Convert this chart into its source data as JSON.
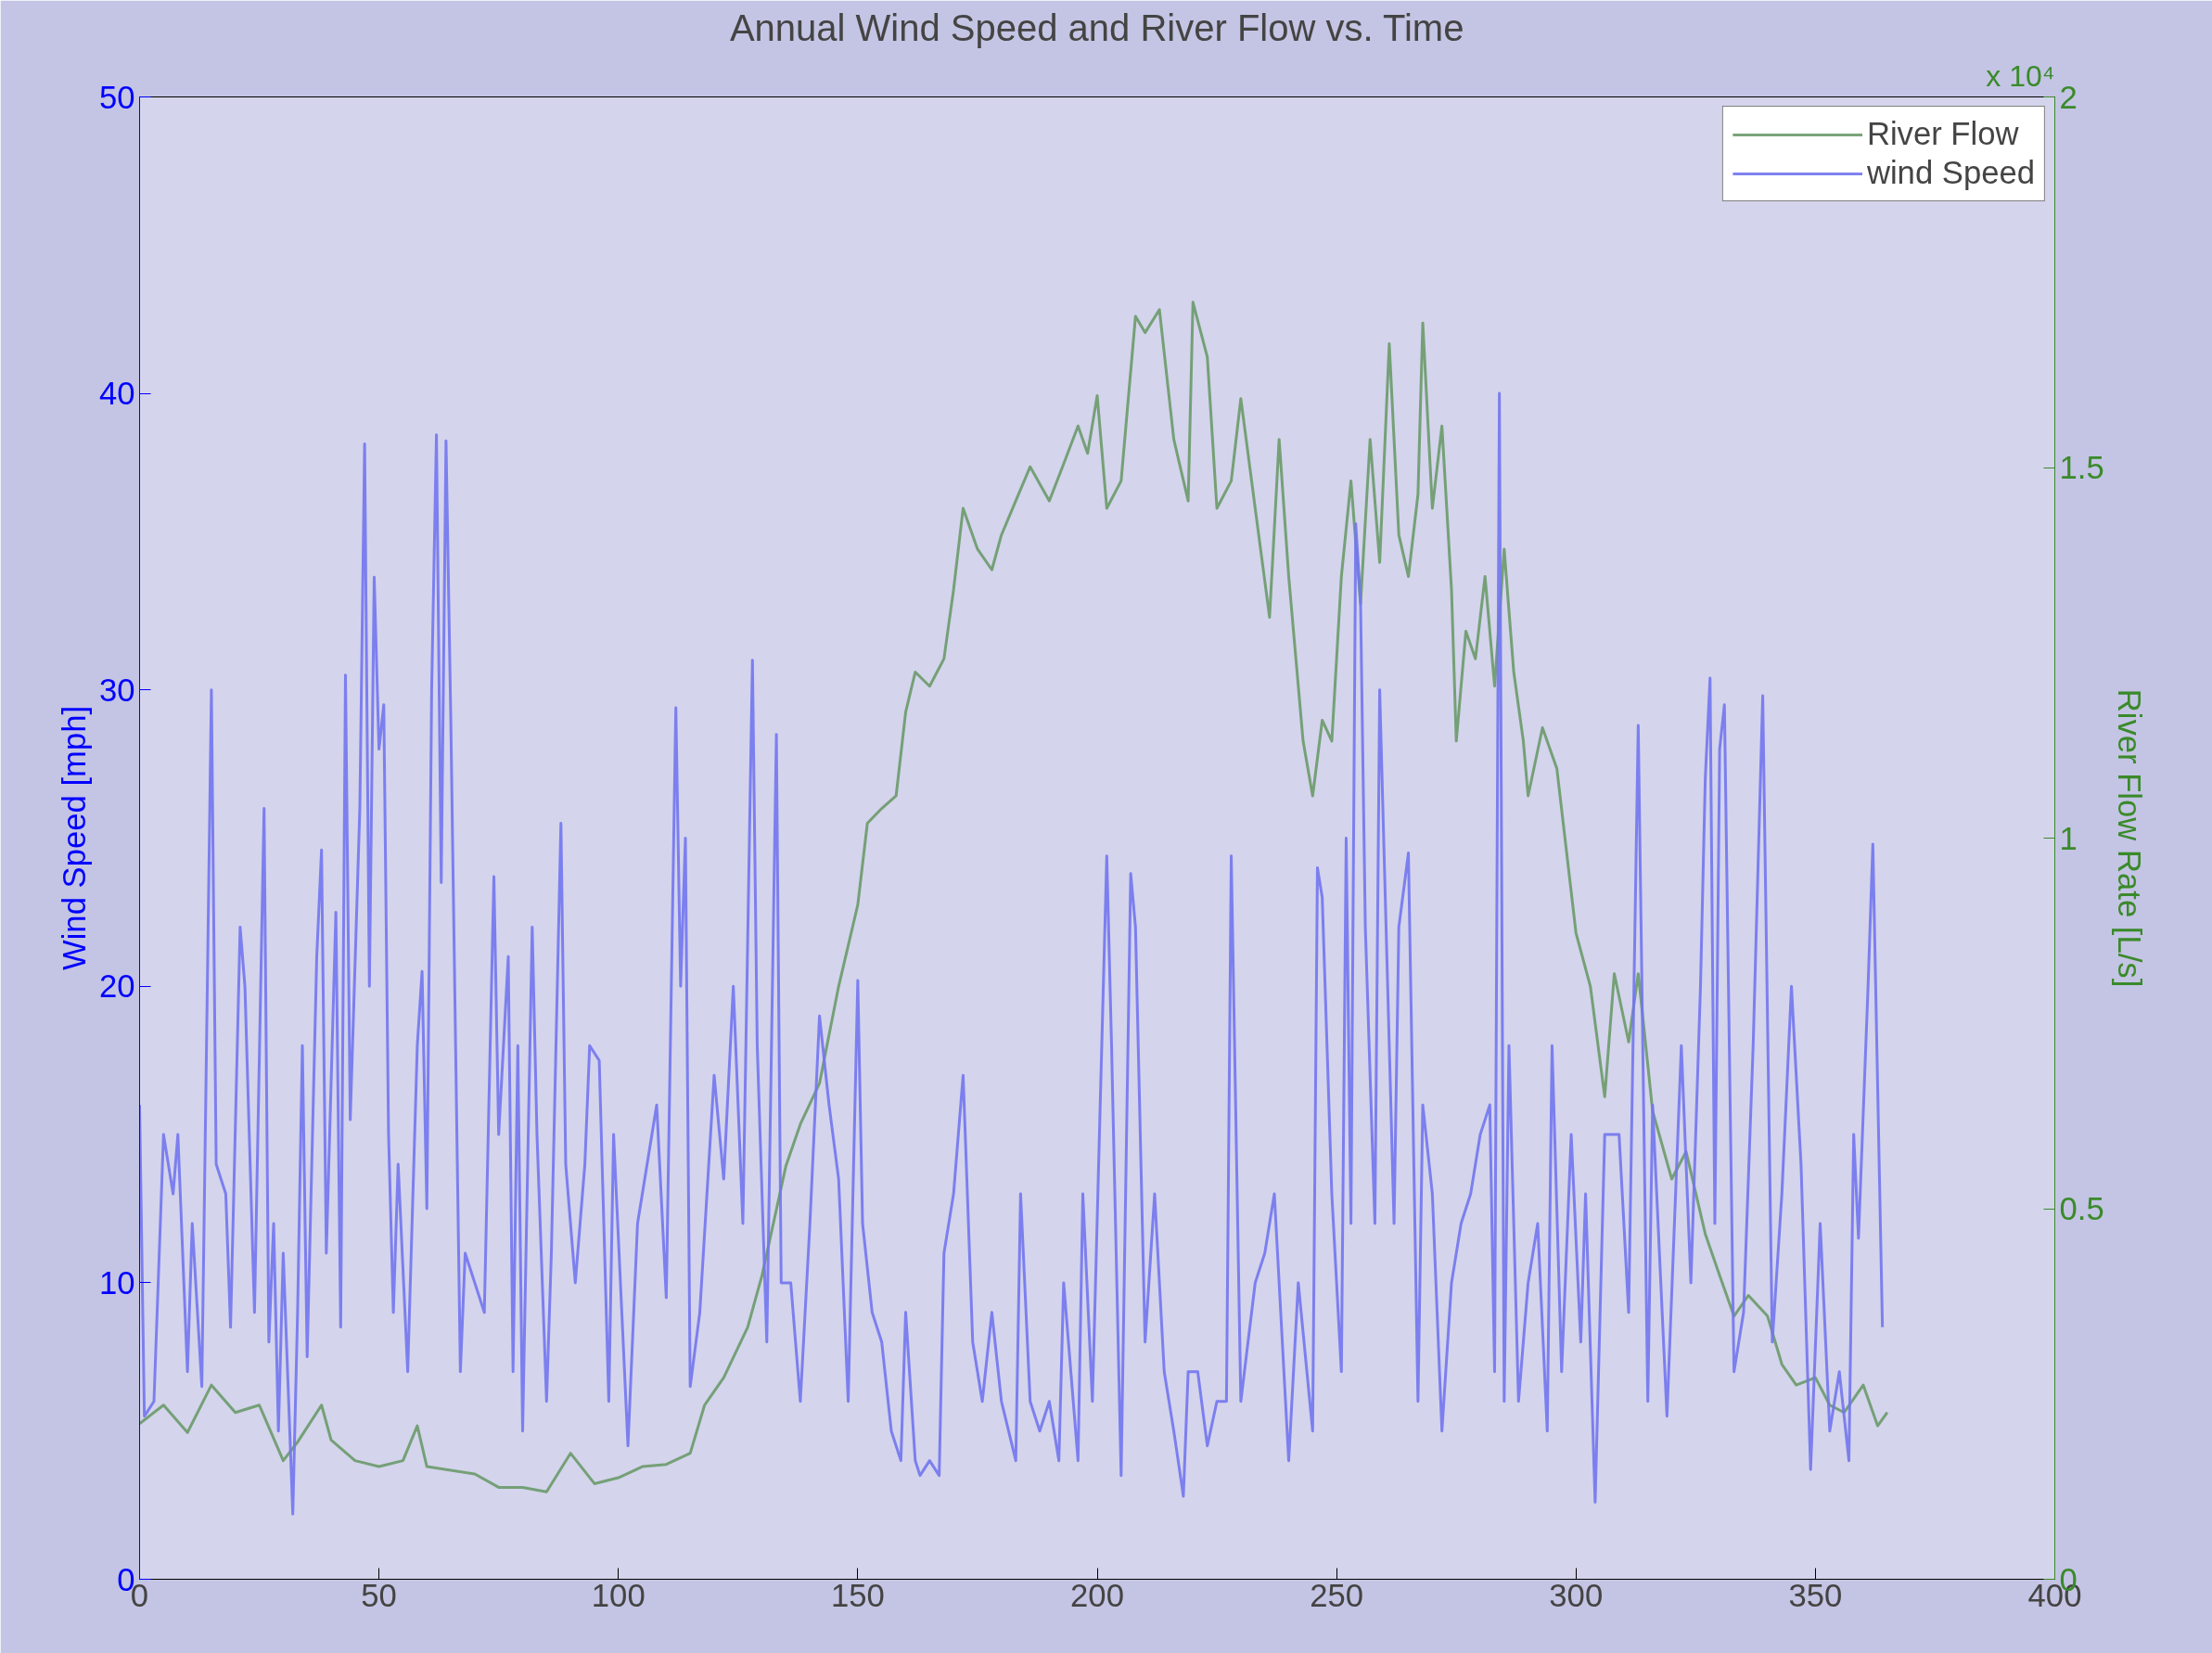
{
  "chart_data": {
    "type": "line",
    "title": "Annual Wind Speed and River Flow vs. Time",
    "ylabel": "Wind Speed [mph]",
    "y2label": "River Flow Rate [L/s]",
    "annotations": [
      "x 10⁴"
    ],
    "xlim": [
      0,
      400
    ],
    "xticks": [
      0,
      50,
      100,
      150,
      200,
      250,
      300,
      350,
      400
    ],
    "ylim": [
      0,
      50
    ],
    "yticks": [
      0,
      10,
      20,
      30,
      40,
      50
    ],
    "y2lim": [
      0,
      2
    ],
    "y2ticks": [
      0,
      0.5,
      1,
      1.5,
      2
    ],
    "grid": false,
    "legend": "top right",
    "marker": "none",
    "line_style": "solid",
    "series": [
      {
        "name": "River Flow",
        "color": "#6a9a6a",
        "axis": "y2",
        "x": [
          0,
          5,
          10,
          15,
          20,
          25,
          30,
          33,
          38,
          40,
          45,
          50,
          55,
          58,
          60,
          70,
          75,
          80,
          85,
          90,
          95,
          100,
          105,
          110,
          115,
          118,
          122,
          127,
          130,
          135,
          138,
          142,
          146,
          150,
          152,
          155,
          158,
          160,
          162,
          165,
          168,
          170,
          172,
          175,
          178,
          180,
          183,
          186,
          190,
          193,
          196,
          198,
          200,
          202,
          205,
          208,
          210,
          213,
          216,
          219,
          220,
          223,
          225,
          228,
          230,
          233,
          236,
          238,
          240,
          243,
          245,
          247,
          249,
          251,
          253,
          255,
          257,
          259,
          261,
          263,
          265,
          267,
          268,
          270,
          272,
          274,
          275,
          277,
          279,
          281,
          283,
          285,
          287,
          289,
          290,
          293,
          296,
          300,
          303,
          306,
          308,
          311,
          313,
          316,
          320,
          323,
          327,
          330,
          333,
          336,
          340,
          343,
          346,
          350,
          353,
          356,
          360,
          363,
          365
        ],
        "values": [
          0.21,
          0.235,
          0.198,
          0.262,
          0.225,
          0.235,
          0.16,
          0.185,
          0.235,
          0.188,
          0.16,
          0.152,
          0.16,
          0.207,
          0.152,
          0.142,
          0.124,
          0.124,
          0.118,
          0.17,
          0.129,
          0.137,
          0.152,
          0.155,
          0.17,
          0.235,
          0.272,
          0.34,
          0.41,
          0.558,
          0.614,
          0.669,
          0.8,
          0.91,
          1.02,
          1.04,
          1.057,
          1.17,
          1.224,
          1.205,
          1.242,
          1.335,
          1.445,
          1.39,
          1.362,
          1.409,
          1.455,
          1.501,
          1.455,
          1.505,
          1.556,
          1.519,
          1.597,
          1.445,
          1.482,
          1.704,
          1.682,
          1.713,
          1.538,
          1.455,
          1.723,
          1.649,
          1.445,
          1.482,
          1.593,
          1.445,
          1.298,
          1.538,
          1.353,
          1.131,
          1.057,
          1.159,
          1.131,
          1.353,
          1.482,
          1.316,
          1.538,
          1.372,
          1.667,
          1.409,
          1.353,
          1.464,
          1.695,
          1.445,
          1.556,
          1.335,
          1.131,
          1.279,
          1.242,
          1.353,
          1.205,
          1.39,
          1.224,
          1.131,
          1.057,
          1.149,
          1.094,
          0.872,
          0.8,
          0.651,
          0.817,
          0.725,
          0.817,
          0.632,
          0.54,
          0.577,
          0.466,
          0.41,
          0.355,
          0.383,
          0.355,
          0.29,
          0.262,
          0.272,
          0.235,
          0.225,
          0.262,
          0.207,
          0.225
        ]
      },
      {
        "name": "wind Speed",
        "color": "#7275ee",
        "axis": "y",
        "x": [
          0,
          1,
          3,
          5,
          7,
          8,
          10,
          11,
          13,
          15,
          16,
          18,
          19,
          21,
          22,
          24,
          26,
          27,
          28,
          29,
          30,
          32,
          33,
          34,
          35,
          37,
          38,
          39,
          41,
          42,
          43,
          44,
          46,
          47,
          48,
          49,
          50,
          51,
          52,
          53,
          54,
          56,
          58,
          59,
          60,
          61,
          62,
          63,
          64,
          65,
          67,
          68,
          70,
          72,
          74,
          75,
          77,
          78,
          79,
          80,
          82,
          83,
          85,
          86,
          88,
          89,
          91,
          93,
          94,
          96,
          98,
          99,
          102,
          104,
          107,
          108,
          110,
          112,
          113,
          114,
          115,
          117,
          120,
          122,
          124,
          126,
          128,
          129,
          131,
          133,
          134,
          136,
          138,
          140,
          142,
          144,
          146,
          148,
          150,
          151,
          153,
          155,
          157,
          159,
          160,
          162,
          163,
          165,
          167,
          168,
          170,
          172,
          174,
          176,
          178,
          180,
          183,
          184,
          186,
          188,
          190,
          192,
          193,
          196,
          197,
          199,
          202,
          203,
          205,
          207,
          208,
          210,
          212,
          214,
          216,
          218,
          219,
          221,
          223,
          225,
          227,
          228,
          230,
          233,
          235,
          237,
          240,
          242,
          245,
          246,
          247,
          249,
          251,
          252,
          253,
          254,
          255,
          256,
          258,
          259,
          260,
          262,
          263,
          265,
          267,
          268,
          270,
          272,
          274,
          276,
          278,
          280,
          282,
          283,
          284,
          285,
          286,
          288,
          290,
          292,
          294,
          295,
          297,
          299,
          301,
          302,
          304,
          306,
          309,
          311,
          313,
          315,
          316,
          319,
          322,
          324,
          326,
          327,
          328,
          329,
          330,
          331,
          333,
          335,
          337,
          339,
          341,
          343,
          345,
          347,
          349,
          351,
          353,
          355,
          357,
          358,
          359,
          361,
          362,
          364
        ],
        "values": [
          16,
          5.5,
          6,
          15,
          13,
          15,
          7,
          12,
          6.5,
          30,
          14,
          13,
          8.5,
          22,
          20,
          9,
          26,
          8,
          12,
          5,
          11,
          2.2,
          9,
          18,
          7.5,
          21,
          24.6,
          11,
          22.5,
          8.5,
          30.5,
          15.5,
          26,
          38.3,
          20,
          33.8,
          28,
          29.5,
          15,
          9,
          14,
          7,
          18,
          20.5,
          12.5,
          30,
          38.6,
          23.5,
          38.4,
          29,
          7,
          11,
          10,
          9,
          23.7,
          15,
          21,
          7,
          18,
          5,
          22,
          15,
          6,
          11,
          25.5,
          14,
          10,
          14,
          18,
          17.5,
          6,
          15,
          4.5,
          12,
          15,
          16,
          9.5,
          29.4,
          20,
          25,
          6.5,
          9,
          17,
          13.5,
          20,
          12,
          31,
          18,
          8,
          28.5,
          10,
          10,
          6,
          12,
          19,
          16,
          13.5,
          6,
          20.2,
          12,
          9,
          8,
          5,
          4,
          9,
          4,
          3.5,
          4,
          3.5,
          11,
          13,
          17,
          8,
          6,
          9,
          6,
          4,
          13,
          6,
          5,
          6,
          4,
          10,
          4,
          13,
          6,
          24.4,
          18,
          3.5,
          23.8,
          22,
          8,
          13,
          7,
          5,
          2.8,
          7,
          7,
          4.5,
          6,
          6,
          24.4,
          6,
          10,
          11,
          13,
          4,
          10,
          5,
          24,
          23,
          13,
          7,
          25,
          12,
          35.6,
          33,
          22,
          12,
          30,
          24,
          12,
          22,
          24.5,
          6,
          16,
          13,
          5,
          10,
          12,
          13,
          15,
          16,
          7,
          40,
          6,
          18,
          6,
          10,
          12,
          5,
          18,
          7,
          15,
          8,
          13,
          2.6,
          15,
          15,
          9,
          28.8,
          6,
          16,
          5.5,
          18,
          10,
          20,
          27,
          30.4,
          12,
          28,
          29.5,
          7,
          9,
          18,
          29.8,
          8,
          13,
          20,
          14,
          3.7,
          12,
          5,
          7,
          4,
          15,
          11.5,
          20,
          24.8,
          8.5
        ]
      }
    ]
  }
}
